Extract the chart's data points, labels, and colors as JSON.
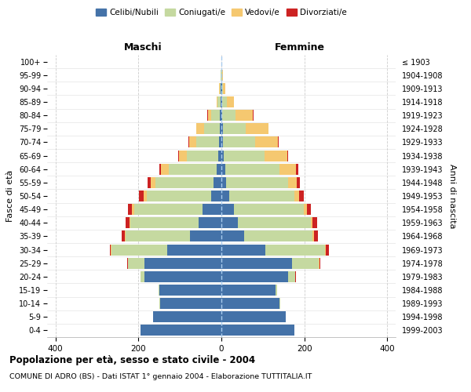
{
  "age_groups": [
    "0-4",
    "5-9",
    "10-14",
    "15-19",
    "20-24",
    "25-29",
    "30-34",
    "35-39",
    "40-44",
    "45-49",
    "50-54",
    "55-59",
    "60-64",
    "65-69",
    "70-74",
    "75-79",
    "80-84",
    "85-89",
    "90-94",
    "95-99",
    "100+"
  ],
  "birth_years": [
    "1999-2003",
    "1994-1998",
    "1989-1993",
    "1984-1988",
    "1979-1983",
    "1974-1978",
    "1969-1973",
    "1964-1968",
    "1959-1963",
    "1954-1958",
    "1949-1953",
    "1944-1948",
    "1939-1943",
    "1934-1938",
    "1929-1933",
    "1924-1928",
    "1919-1923",
    "1914-1918",
    "1909-1913",
    "1904-1908",
    "≤ 1903"
  ],
  "maschi": {
    "celibi": [
      195,
      165,
      148,
      150,
      185,
      185,
      130,
      75,
      55,
      45,
      25,
      18,
      12,
      8,
      5,
      4,
      3,
      1,
      1,
      0,
      0
    ],
    "coniugati": [
      0,
      0,
      1,
      2,
      10,
      40,
      135,
      155,
      165,
      165,
      155,
      140,
      115,
      75,
      55,
      38,
      22,
      8,
      3,
      1,
      0
    ],
    "vedovi": [
      0,
      0,
      0,
      0,
      0,
      0,
      1,
      2,
      2,
      5,
      8,
      12,
      18,
      20,
      18,
      18,
      8,
      2,
      1,
      0,
      0
    ],
    "divorziati": [
      0,
      0,
      0,
      0,
      0,
      2,
      2,
      8,
      8,
      10,
      10,
      8,
      5,
      2,
      2,
      1,
      1,
      0,
      0,
      0,
      0
    ]
  },
  "femmine": {
    "nubili": [
      175,
      155,
      140,
      130,
      160,
      170,
      105,
      55,
      40,
      30,
      18,
      12,
      10,
      6,
      4,
      3,
      2,
      1,
      1,
      0,
      0
    ],
    "coniugate": [
      0,
      1,
      2,
      4,
      18,
      65,
      145,
      165,
      175,
      168,
      158,
      148,
      130,
      98,
      78,
      55,
      32,
      12,
      3,
      1,
      0
    ],
    "vedove": [
      0,
      0,
      0,
      0,
      0,
      1,
      2,
      3,
      5,
      8,
      12,
      22,
      40,
      55,
      55,
      55,
      42,
      18,
      5,
      2,
      0
    ],
    "divorziate": [
      0,
      0,
      0,
      0,
      1,
      3,
      8,
      10,
      10,
      10,
      10,
      8,
      5,
      2,
      2,
      1,
      1,
      0,
      0,
      0,
      0
    ]
  },
  "colors": {
    "celibi": "#4472a8",
    "coniugati": "#c5d9a0",
    "vedovi": "#f5c870",
    "divorziati": "#cc2222"
  },
  "xlim": 420,
  "title": "Popolazione per età, sesso e stato civile - 2004",
  "subtitle": "COMUNE DI ADRO (BS) - Dati ISTAT 1° gennaio 2004 - Elaborazione TUTTITALIA.IT",
  "ylabel_left": "Fasce di età",
  "ylabel_right": "Anni di nascita",
  "xlabel_left": "Maschi",
  "xlabel_right": "Femmine"
}
